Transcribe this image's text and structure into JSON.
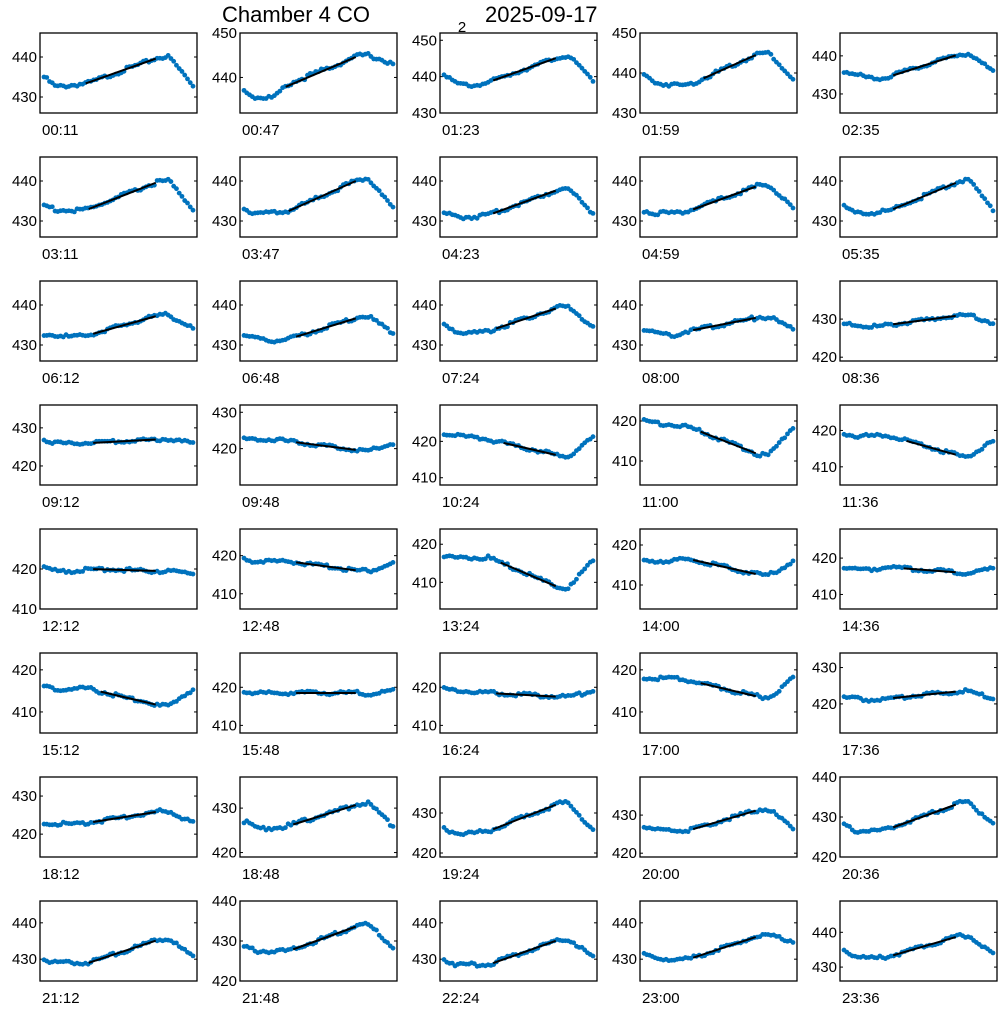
{
  "title": {
    "main": "Chamber 4 CO",
    "subscript": "2",
    "date": "2025-09-17"
  },
  "chart_data": {
    "type": "scatter",
    "point_color": "#0072bd",
    "fit_color": "#000000",
    "grid": false,
    "panels": [
      {
        "label": "00:11",
        "yticks": [
          430,
          440
        ],
        "ylim": [
          426,
          446
        ],
        "profile": [
          435,
          432.5,
          433,
          433.5,
          440,
          440,
          433
        ],
        "fit": [
          0.28,
          0.75
        ]
      },
      {
        "label": "00:47",
        "yticks": [
          440,
          450
        ],
        "ylim": [
          432,
          450
        ],
        "profile": [
          437,
          435.5,
          435.5,
          438.5,
          445,
          445,
          443
        ],
        "fit": [
          0.28,
          0.75
        ]
      },
      {
        "label": "01:23",
        "yticks": [
          430,
          440,
          450
        ],
        "ylim": [
          430,
          452
        ],
        "profile": [
          441,
          438,
          437.5,
          438.5,
          445.5,
          445.5,
          439
        ],
        "fit": [
          0.33,
          0.75
        ]
      },
      {
        "label": "01:59",
        "yticks": [
          430,
          440,
          450
        ],
        "ylim": [
          430,
          450
        ],
        "profile": [
          439.5,
          437.5,
          437,
          437,
          445,
          445,
          438.5
        ],
        "fit": [
          0.4,
          0.75
        ]
      },
      {
        "label": "02:35",
        "yticks": [
          430,
          440
        ],
        "ylim": [
          425,
          446
        ],
        "profile": [
          436,
          435,
          434,
          434.5,
          440.5,
          440.5,
          436
        ],
        "fit": [
          0.33,
          0.75
        ]
      },
      {
        "label": "03:11",
        "yticks": [
          430,
          440
        ],
        "ylim": [
          426,
          446
        ],
        "profile": [
          434,
          432.8,
          432.5,
          433,
          440,
          440,
          433
        ],
        "fit": [
          0.3,
          0.75
        ]
      },
      {
        "label": "03:47",
        "yticks": [
          430,
          440
        ],
        "ylim": [
          426,
          446
        ],
        "profile": [
          433,
          432,
          432,
          432.5,
          440.5,
          440.5,
          433
        ],
        "fit": [
          0.3,
          0.75
        ]
      },
      {
        "label": "04:23",
        "yticks": [
          430,
          440
        ],
        "ylim": [
          426,
          446
        ],
        "profile": [
          432,
          431,
          431,
          431.5,
          438,
          438,
          432
        ],
        "fit": [
          0.33,
          0.75
        ]
      },
      {
        "label": "04:59",
        "yticks": [
          430,
          440
        ],
        "ylim": [
          426,
          446
        ],
        "profile": [
          432.5,
          432,
          432,
          432.5,
          439,
          439,
          433
        ],
        "fit": [
          0.33,
          0.75
        ]
      },
      {
        "label": "05:35",
        "yticks": [
          430,
          440
        ],
        "ylim": [
          426,
          446
        ],
        "profile": [
          433.5,
          432,
          432,
          432.5,
          440,
          440,
          433
        ],
        "fit": [
          0.33,
          0.75
        ]
      },
      {
        "label": "06:12",
        "yticks": [
          430,
          440
        ],
        "ylim": [
          426,
          446
        ],
        "profile": [
          432.5,
          432.5,
          432,
          432.5,
          437.5,
          437.5,
          434
        ],
        "fit": [
          0.33,
          0.75
        ]
      },
      {
        "label": "06:48",
        "yticks": [
          430,
          440
        ],
        "ylim": [
          426,
          446
        ],
        "profile": [
          432.5,
          431.5,
          431,
          431.5,
          437,
          437,
          433
        ],
        "fit": [
          0.35,
          0.75
        ]
      },
      {
        "label": "07:24",
        "yticks": [
          430,
          440
        ],
        "ylim": [
          426,
          446
        ],
        "profile": [
          435,
          433.5,
          433,
          433.5,
          439.5,
          439.5,
          434.5
        ],
        "fit": [
          0.35,
          0.75
        ]
      },
      {
        "label": "08:00",
        "yticks": [
          430,
          440
        ],
        "ylim": [
          426,
          446
        ],
        "profile": [
          434,
          433,
          432.5,
          433.5,
          437,
          437,
          434
        ],
        "fit": [
          0.33,
          0.75
        ]
      },
      {
        "label": "08:36",
        "yticks": [
          420,
          430
        ],
        "ylim": [
          419,
          440
        ],
        "profile": [
          428.5,
          428.5,
          428,
          428.5,
          431,
          431,
          429
        ],
        "fit": [
          0.33,
          0.75
        ]
      },
      {
        "label": "09:12",
        "yticks": [
          420,
          430
        ],
        "ylim": [
          415,
          436
        ],
        "profile": [
          427,
          426,
          426,
          426,
          427,
          427,
          426
        ],
        "fit": [
          0.33,
          0.75
        ]
      },
      {
        "label": "09:48",
        "yticks": [
          420,
          430
        ],
        "ylim": [
          410,
          432
        ],
        "profile": [
          422.5,
          422.5,
          422.5,
          422,
          419.5,
          419.5,
          421.5
        ],
        "fit": [
          0.35,
          0.75
        ]
      },
      {
        "label": "10:24",
        "yticks": [
          410,
          420
        ],
        "ylim": [
          408,
          430
        ],
        "profile": [
          422,
          421.5,
          421,
          420.5,
          416,
          416,
          421
        ],
        "fit": [
          0.4,
          0.75
        ]
      },
      {
        "label": "11:00",
        "yticks": [
          410,
          420
        ],
        "ylim": [
          404,
          424
        ],
        "profile": [
          420,
          419.5,
          419,
          418.5,
          411.5,
          411.5,
          418.5
        ],
        "fit": [
          0.38,
          0.75
        ]
      },
      {
        "label": "11:36",
        "yticks": [
          410,
          420
        ],
        "ylim": [
          405,
          427
        ],
        "profile": [
          419,
          418.5,
          418.5,
          418.5,
          413,
          413,
          417
        ],
        "fit": [
          0.42,
          0.75
        ]
      },
      {
        "label": "12:12",
        "yticks": [
          410,
          420
        ],
        "ylim": [
          410,
          430
        ],
        "profile": [
          420.5,
          419.5,
          419.5,
          420,
          419.5,
          419.5,
          419
        ],
        "fit": [
          0.33,
          0.75
        ]
      },
      {
        "label": "12:48",
        "yticks": [
          410,
          420
        ],
        "ylim": [
          406,
          427
        ],
        "profile": [
          419,
          418.5,
          418.5,
          418.5,
          416,
          416,
          418
        ],
        "fit": [
          0.35,
          0.75
        ]
      },
      {
        "label": "13:24",
        "yticks": [
          410,
          420
        ],
        "ylim": [
          403,
          424
        ],
        "profile": [
          417,
          416.5,
          416.5,
          416.5,
          408.5,
          408.5,
          416
        ],
        "fit": [
          0.38,
          0.75
        ]
      },
      {
        "label": "14:00",
        "yticks": [
          410,
          420
        ],
        "ylim": [
          404,
          424
        ],
        "profile": [
          416,
          416,
          416,
          416.5,
          412.5,
          412.5,
          416
        ],
        "fit": [
          0.33,
          0.75
        ]
      },
      {
        "label": "14:36",
        "yticks": [
          410,
          420
        ],
        "ylim": [
          406,
          428
        ],
        "profile": [
          417.5,
          417,
          417,
          417.5,
          416,
          416,
          417
        ],
        "fit": [
          0.4,
          0.75
        ]
      },
      {
        "label": "15:12",
        "yticks": [
          410,
          420
        ],
        "ylim": [
          405,
          424
        ],
        "profile": [
          416,
          415.5,
          415.5,
          415.5,
          411.5,
          411.5,
          415.5
        ],
        "fit": [
          0.38,
          0.75
        ]
      },
      {
        "label": "15:48",
        "yticks": [
          410,
          420
        ],
        "ylim": [
          408,
          429
        ],
        "profile": [
          419,
          418.5,
          418.5,
          418.5,
          418.5,
          418,
          419
        ],
        "fit": [
          0.35,
          0.75
        ]
      },
      {
        "label": "16:24",
        "yticks": [
          410,
          420
        ],
        "ylim": [
          408,
          429
        ],
        "profile": [
          419.5,
          419,
          419,
          418.5,
          417.5,
          417.5,
          419
        ],
        "fit": [
          0.35,
          0.75
        ]
      },
      {
        "label": "17:00",
        "yticks": [
          410,
          420
        ],
        "ylim": [
          405,
          424
        ],
        "profile": [
          418,
          418,
          418,
          417.5,
          413.5,
          413.5,
          418
        ],
        "fit": [
          0.38,
          0.75
        ]
      },
      {
        "label": "17:36",
        "yticks": [
          420,
          430
        ],
        "ylim": [
          412,
          434
        ],
        "profile": [
          421.5,
          421.5,
          421,
          421.5,
          423.5,
          423.5,
          421.5
        ],
        "fit": [
          0.33,
          0.75
        ]
      },
      {
        "label": "18:12",
        "yticks": [
          420,
          430
        ],
        "ylim": [
          414,
          435
        ],
        "profile": [
          423,
          422.8,
          422.5,
          423,
          426,
          426,
          423
        ],
        "fit": [
          0.33,
          0.75
        ]
      },
      {
        "label": "18:48",
        "yticks": [
          420,
          430
        ],
        "ylim": [
          419,
          437
        ],
        "profile": [
          427,
          425.5,
          425.5,
          426,
          431,
          431,
          426
        ],
        "fit": [
          0.33,
          0.75
        ]
      },
      {
        "label": "19:24",
        "yticks": [
          420,
          430
        ],
        "ylim": [
          419,
          439
        ],
        "profile": [
          426,
          425,
          425,
          425.5,
          432.5,
          432.5,
          425.5
        ],
        "fit": [
          0.33,
          0.75
        ]
      },
      {
        "label": "20:00",
        "yticks": [
          420,
          430
        ],
        "ylim": [
          419,
          440
        ],
        "profile": [
          427,
          426,
          426,
          426,
          431.5,
          431.5,
          426.5
        ],
        "fit": [
          0.33,
          0.75
        ]
      },
      {
        "label": "20:36",
        "yticks": [
          420,
          430,
          440
        ],
        "ylim": [
          420,
          440
        ],
        "profile": [
          428,
          426.5,
          426.5,
          427,
          433.5,
          433.5,
          428.5
        ],
        "fit": [
          0.33,
          0.75
        ]
      },
      {
        "label": "21:12",
        "yticks": [
          430,
          440
        ],
        "ylim": [
          424,
          446
        ],
        "profile": [
          430,
          429,
          429,
          429,
          435.5,
          435.5,
          430.5
        ],
        "fit": [
          0.3,
          0.75
        ]
      },
      {
        "label": "21:48",
        "yticks": [
          420,
          430,
          440
        ],
        "ylim": [
          420,
          440
        ],
        "profile": [
          428.5,
          427.5,
          427.5,
          427.5,
          434,
          434,
          428.5
        ],
        "fit": [
          0.33,
          0.75
        ]
      },
      {
        "label": "22:24",
        "yticks": [
          430,
          440
        ],
        "ylim": [
          424,
          446
        ],
        "profile": [
          430,
          428.5,
          428.5,
          428.5,
          435.5,
          435.5,
          430.5
        ],
        "fit": [
          0.33,
          0.75
        ]
      },
      {
        "label": "23:00",
        "yticks": [
          430,
          440
        ],
        "ylim": [
          424,
          446
        ],
        "profile": [
          431.5,
          430,
          430,
          430,
          436.5,
          436.5,
          435
        ],
        "fit": [
          0.33,
          0.75
        ]
      },
      {
        "label": "23:36",
        "yticks": [
          430,
          440
        ],
        "ylim": [
          426,
          449
        ],
        "profile": [
          435,
          433,
          432.5,
          433,
          439,
          439,
          434
        ],
        "fit": [
          0.33,
          0.75
        ]
      }
    ]
  }
}
